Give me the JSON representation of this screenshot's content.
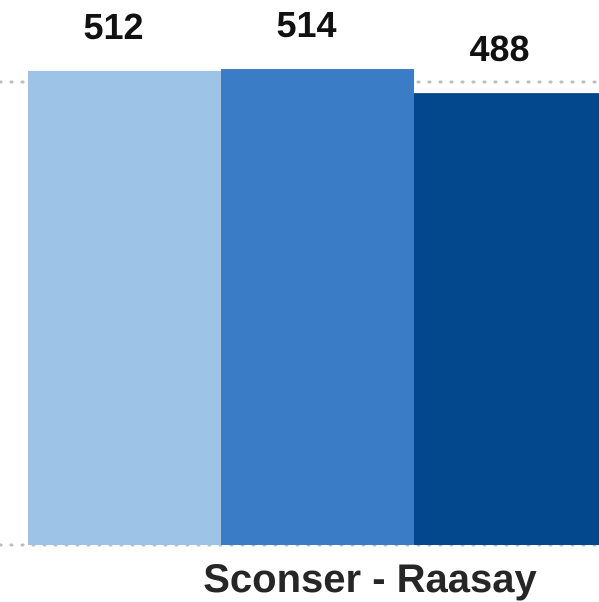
{
  "chart_data": {
    "type": "bar",
    "categories": [
      "Sconser - Raasay"
    ],
    "series": [
      {
        "values": [
          512
        ],
        "color": "#9dc3e6"
      },
      {
        "values": [
          514
        ],
        "color": "#3a7dc6"
      },
      {
        "values": [
          488
        ],
        "color": "#03478c"
      }
    ],
    "data_labels": [
      "512",
      "514",
      "488"
    ],
    "category_label": "Sconser - Raasay",
    "ylim": [
      0,
      520
    ],
    "grid": true,
    "gridline_values": [
      0,
      500
    ],
    "gridline_color": "#bdbdbd",
    "label_color": "#262626",
    "legend": "none"
  }
}
